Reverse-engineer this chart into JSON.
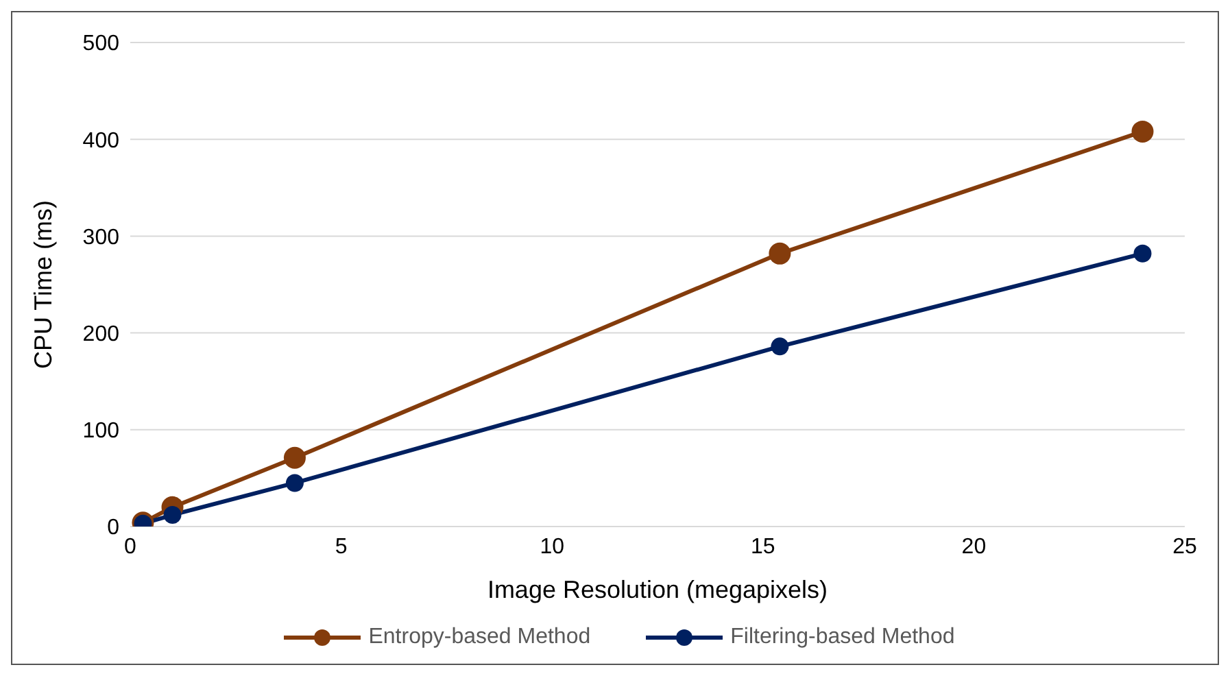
{
  "chart_data": {
    "type": "line",
    "xlabel": "Image Resolution (megapixels)",
    "ylabel": "CPU Time (ms)",
    "xlim": [
      0,
      25
    ],
    "xticks": [
      0,
      5,
      10,
      15,
      20,
      25
    ],
    "ylim": [
      0,
      500
    ],
    "yticks": [
      0,
      100,
      200,
      300,
      400,
      500
    ],
    "grid": "y",
    "legend": "bottom",
    "marker": "circle",
    "line_style": "solid",
    "series": [
      {
        "name": "Entropy-based Method",
        "color": "#843c0c",
        "x": [
          0.3,
          1.0,
          3.9,
          15.4,
          24.0
        ],
        "values": [
          4,
          20,
          71,
          282,
          408
        ]
      },
      {
        "name": "Filtering-based Method",
        "color": "#002060",
        "x": [
          0.3,
          1.0,
          3.9,
          15.4,
          24.0
        ],
        "values": [
          3,
          12,
          45,
          186,
          282
        ]
      }
    ]
  }
}
